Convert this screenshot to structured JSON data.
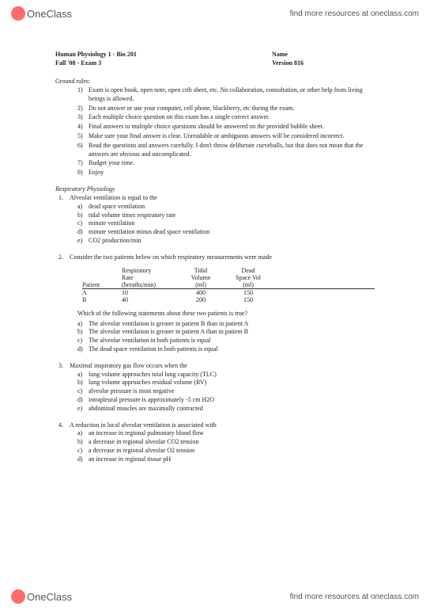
{
  "brand": {
    "logo_text": "OneClass",
    "tagline": "find more resources at oneclass.com"
  },
  "doc": {
    "course": "Human Physiology 1 - Bio 201",
    "name_label": "Name",
    "exam": "Fall '08 - Exam 3",
    "version": "Version 816",
    "ground_rules_label": "Ground rules:",
    "rules": [
      "Exam is open book, open note, open crib sheet, etc. No collaboration, consultation, or other help from living beings is allowed.",
      "Do not answer or use your computer, cell phone, blackberry, etc during the exam.",
      "Each multiple choice question on this exam has a single correct answer.",
      "Final answers to multiple choice questions should be answered on the provided bubble sheet.",
      "Make sure your final answer is clear. Unreadable or ambiguous answers will be considered incorrect.",
      "Read the questions and answers carefully. I don't throw deliberate curveballs, but that does not mean that the answers are obvious and uncomplicated.",
      "Budget your time.",
      "Enjoy"
    ],
    "section1": "Respiratory Physiology",
    "q1": {
      "text": "Alveolar ventilation is equal to the",
      "opts": [
        "dead space ventilation",
        "tidal volume times respiratory rate",
        "minute ventilation",
        "minute ventilation minus dead space ventilation",
        "CO2 production/min"
      ]
    },
    "q2": {
      "text": "Consider the two patients below on which respiratory measurements were made",
      "table": {
        "h_patient": "Patient",
        "h_rate1": "Respiratory",
        "h_rate2": "Rate",
        "h_rate3": "(breaths/min)",
        "h_tidal1": "Tidal",
        "h_tidal2": "Volume",
        "h_tidal3": "(ml)",
        "h_dead1": "Dead",
        "h_dead2": "Space Vol",
        "h_dead3": "(ml)",
        "rows": [
          {
            "p": "A",
            "r": "10",
            "t": "400",
            "d": "150"
          },
          {
            "p": "B",
            "r": "40",
            "t": "200",
            "d": "150"
          }
        ]
      },
      "stmt": "Which of the following statements about these two patients is true?",
      "opts": [
        "The alveolar ventilation is greater in patient B than in patient A",
        "The alveolar ventilation is greater in patient A than in patient B",
        "The alveolar ventilation in both patients is equal",
        "The dead space ventilation in both patients is equal"
      ]
    },
    "q3": {
      "text": "Maximal inspiratory gas flow occurs when the",
      "opts": [
        "lung volume approaches total lung capacity (TLC)",
        "lung volume approaches residual volume (RV)",
        "alveolar pressure is most negative",
        "intrapleural pressure is approximately -5 cm H2O",
        "abdominal muscles are maximally contracted"
      ]
    },
    "q4": {
      "text": "A reduction in local alveolar ventilation is associated with",
      "opts": [
        "an increase in regional pulmonary blood flow",
        "a decrease in regional alveolar CO2 tension",
        "a decrease in regional alveolar O2 tension",
        "an increase in regional tissue pH"
      ]
    }
  }
}
